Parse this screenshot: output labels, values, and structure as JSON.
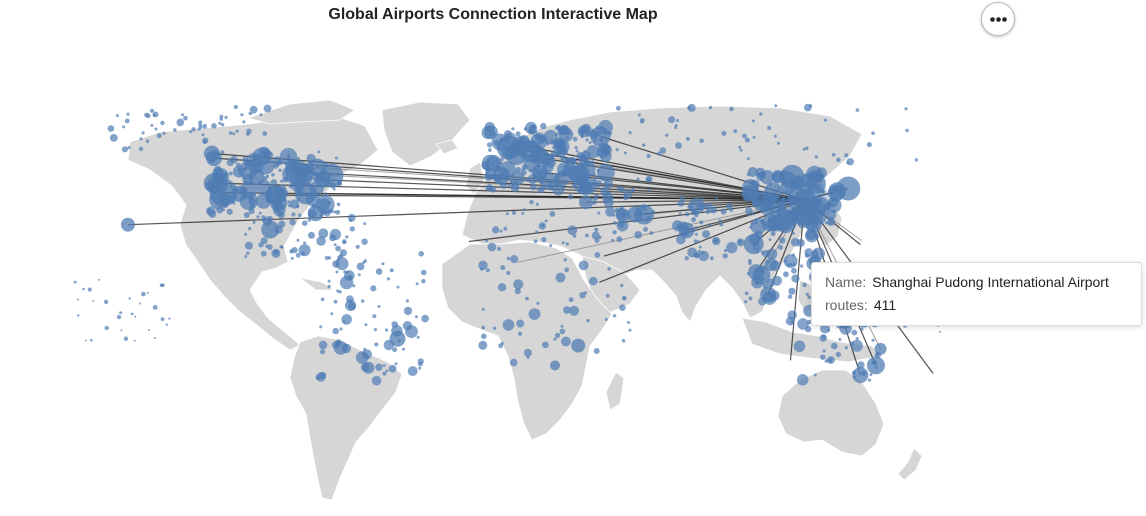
{
  "title": "Global Airports Connection Interactive Map",
  "menu": {
    "icon": "more-horizontal-icon"
  },
  "colors": {
    "land": "#d6d6d6",
    "border": "#ffffff",
    "airport": "#4f7cb3",
    "route_highlight": "#1c1c1c",
    "route_faded": "#8c8c8c"
  },
  "tooltip": {
    "name_key": "Name:",
    "name_value": "Shanghai Pudong International Airport",
    "routes_key": "routes:",
    "routes_value": "411"
  },
  "map_data": {
    "type": "geo-scatter-with-routes",
    "hub": {
      "name": "Shanghai Pudong International Airport",
      "lon": 121.8,
      "lat": 31.1,
      "routes": 411
    },
    "highlighted_destinations": [
      {
        "lon": -0.45,
        "lat": 51.5
      },
      {
        "lon": 2.55,
        "lat": 49.0
      },
      {
        "lon": 8.6,
        "lat": 50.0
      },
      {
        "lon": 11.8,
        "lat": 48.4
      },
      {
        "lon": 4.8,
        "lat": 52.3
      },
      {
        "lon": 12.3,
        "lat": 41.8
      },
      {
        "lon": 37.4,
        "lat": 55.9
      },
      {
        "lon": 28.8,
        "lat": 41.0
      },
      {
        "lon": -73.8,
        "lat": 40.6
      },
      {
        "lon": -87.9,
        "lat": 42.0
      },
      {
        "lon": -118.4,
        "lat": 33.9
      },
      {
        "lon": -122.4,
        "lat": 37.6
      },
      {
        "lon": -122.3,
        "lat": 47.4
      },
      {
        "lon": -79.6,
        "lat": 43.7
      },
      {
        "lon": -123.2,
        "lat": 49.2
      },
      {
        "lon": -77.4,
        "lat": 38.9
      },
      {
        "lon": -84.4,
        "lat": 33.6
      },
      {
        "lon": -97.0,
        "lat": 32.9
      },
      {
        "lon": 55.4,
        "lat": 25.3
      },
      {
        "lon": 51.6,
        "lat": 25.3
      },
      {
        "lon": 72.9,
        "lat": 19.1
      },
      {
        "lon": 77.1,
        "lat": 28.6
      },
      {
        "lon": 100.7,
        "lat": 13.7
      },
      {
        "lon": 103.9,
        "lat": 1.4
      },
      {
        "lon": 101.7,
        "lat": 2.7
      },
      {
        "lon": 106.7,
        "lat": -6.1
      },
      {
        "lon": 151.2,
        "lat": -33.9
      },
      {
        "lon": 144.8,
        "lat": -37.7
      },
      {
        "lon": 153.1,
        "lat": -27.4
      },
      {
        "lon": 174.8,
        "lat": -37.0
      },
      {
        "lon": 115.9,
        "lat": -31.9
      },
      {
        "lon": 139.8,
        "lat": 35.5
      },
      {
        "lon": 135.2,
        "lat": 34.4
      },
      {
        "lon": 126.4,
        "lat": 37.5
      },
      {
        "lon": 113.9,
        "lat": 22.3
      },
      {
        "lon": 121.2,
        "lat": 25.1
      },
      {
        "lon": -157.9,
        "lat": 21.3
      },
      {
        "lon": -17.0,
        "lat": 14.7
      },
      {
        "lon": 3.3,
        "lat": 6.6
      },
      {
        "lon": 38.8,
        "lat": 9.0
      },
      {
        "lon": 31.4,
        "lat": 30.1
      },
      {
        "lon": 36.9,
        "lat": -1.3
      },
      {
        "lon": 144.8,
        "lat": 13.5
      },
      {
        "lon": 145.3,
        "lat": 15.1
      }
    ],
    "airport_clusters": [
      {
        "lon": -10,
        "lat": 35,
        "lon2": 40,
        "lat2": 60,
        "n": 240,
        "rmin": 1.5,
        "rmax": 9
      },
      {
        "lon": -125,
        "lat": 25,
        "lon2": -70,
        "lat2": 50,
        "n": 170,
        "rmin": 1.5,
        "rmax": 10
      },
      {
        "lon": 98,
        "lat": 20,
        "lon2": 135,
        "lat2": 42,
        "n": 150,
        "rmin": 1.5,
        "rmax": 9
      },
      {
        "lon": 68,
        "lat": 8,
        "lon2": 92,
        "lat2": 32,
        "n": 50,
        "rmin": 1.5,
        "rmax": 6
      },
      {
        "lon": 95,
        "lat": -10,
        "lon2": 128,
        "lat2": 18,
        "n": 70,
        "rmin": 1.5,
        "rmax": 7
      },
      {
        "lon": -110,
        "lat": 8,
        "lon2": -60,
        "lat2": 25,
        "n": 55,
        "rmin": 1.5,
        "rmax": 6
      },
      {
        "lon": -80,
        "lat": -40,
        "lon2": -35,
        "lat2": 10,
        "n": 85,
        "rmin": 1.5,
        "rmax": 7
      },
      {
        "lon": -15,
        "lat": -35,
        "lon2": 50,
        "lat2": 35,
        "n": 90,
        "rmin": 1.5,
        "rmax": 6
      },
      {
        "lon": 115,
        "lat": -40,
        "lon2": 155,
        "lat2": -12,
        "n": 55,
        "rmin": 1.5,
        "rmax": 7
      },
      {
        "lon": 35,
        "lat": 15,
        "lon2": 60,
        "lat2": 40,
        "n": 40,
        "rmin": 1.5,
        "rmax": 6
      },
      {
        "lon": 40,
        "lat": 45,
        "lon2": 170,
        "lat2": 68,
        "n": 55,
        "rmin": 1.5,
        "rmax": 4
      },
      {
        "lon": -165,
        "lat": 50,
        "lon2": -100,
        "lat2": 68,
        "n": 55,
        "rmin": 1.5,
        "rmax": 4
      },
      {
        "lon": -180,
        "lat": -25,
        "lon2": -140,
        "lat2": 0,
        "n": 30,
        "rmin": 1,
        "rmax": 2.5
      },
      {
        "lon": 160,
        "lat": -22,
        "lon2": 180,
        "lat2": 5,
        "n": 22,
        "rmin": 1,
        "rmax": 2.5
      }
    ],
    "major_airports": [
      {
        "lon": -118.4,
        "lat": 33.9,
        "r": 14
      },
      {
        "lon": -122.4,
        "lat": 37.6,
        "r": 10
      },
      {
        "lon": -87.9,
        "lat": 42.0,
        "r": 12
      },
      {
        "lon": -73.8,
        "lat": 40.6,
        "r": 12
      },
      {
        "lon": -84.4,
        "lat": 33.6,
        "r": 11
      },
      {
        "lon": -97.0,
        "lat": 32.9,
        "r": 10
      },
      {
        "lon": -104.7,
        "lat": 39.9,
        "r": 8
      },
      {
        "lon": -80.3,
        "lat": 25.8,
        "r": 8
      },
      {
        "lon": -99.1,
        "lat": 19.4,
        "r": 9
      },
      {
        "lon": -0.45,
        "lat": 51.5,
        "r": 12
      },
      {
        "lon": 2.55,
        "lat": 49.0,
        "r": 11
      },
      {
        "lon": 8.6,
        "lat": 50.0,
        "r": 11
      },
      {
        "lon": 4.8,
        "lat": 52.3,
        "r": 10
      },
      {
        "lon": 11.8,
        "lat": 48.4,
        "r": 9
      },
      {
        "lon": -3.6,
        "lat": 40.5,
        "r": 9
      },
      {
        "lon": 12.3,
        "lat": 41.8,
        "r": 8
      },
      {
        "lon": 28.8,
        "lat": 41.0,
        "r": 10
      },
      {
        "lon": 37.4,
        "lat": 55.9,
        "r": 10
      },
      {
        "lon": 55.4,
        "lat": 25.3,
        "r": 10
      },
      {
        "lon": 51.6,
        "lat": 25.3,
        "r": 8
      },
      {
        "lon": 46.7,
        "lat": 24.9,
        "r": 7
      },
      {
        "lon": 31.4,
        "lat": 30.1,
        "r": 7
      },
      {
        "lon": 77.1,
        "lat": 28.6,
        "r": 8
      },
      {
        "lon": 72.9,
        "lat": 19.1,
        "r": 8
      },
      {
        "lon": 100.7,
        "lat": 13.7,
        "r": 10
      },
      {
        "lon": 103.9,
        "lat": 1.4,
        "r": 9
      },
      {
        "lon": 101.7,
        "lat": 2.7,
        "r": 8
      },
      {
        "lon": 106.7,
        "lat": -6.1,
        "r": 8
      },
      {
        "lon": 113.9,
        "lat": 22.3,
        "r": 11
      },
      {
        "lon": 116.6,
        "lat": 40.1,
        "r": 12
      },
      {
        "lon": 113.3,
        "lat": 23.4,
        "r": 11
      },
      {
        "lon": 104.0,
        "lat": 30.6,
        "r": 10
      },
      {
        "lon": 108.8,
        "lat": 34.4,
        "r": 9
      },
      {
        "lon": 139.8,
        "lat": 35.5,
        "r": 12
      },
      {
        "lon": 135.2,
        "lat": 34.4,
        "r": 9
      },
      {
        "lon": 126.4,
        "lat": 37.5,
        "r": 10
      },
      {
        "lon": 121.2,
        "lat": 25.1,
        "r": 8
      },
      {
        "lon": 151.2,
        "lat": -33.9,
        "r": 9
      },
      {
        "lon": 144.8,
        "lat": -37.7,
        "r": 8
      },
      {
        "lon": 153.1,
        "lat": -27.4,
        "r": 6
      },
      {
        "lon": -46.5,
        "lat": -23.4,
        "r": 8
      },
      {
        "lon": -58.5,
        "lat": -34.8,
        "r": 6
      },
      {
        "lon": 28.2,
        "lat": -26.1,
        "r": 7
      },
      {
        "lon": 18.6,
        "lat": -33.9,
        "r": 5
      },
      {
        "lon": -157.9,
        "lat": 21.3,
        "r": 7
      },
      {
        "lon": -79.6,
        "lat": 43.7,
        "r": 9
      },
      {
        "lon": -123.2,
        "lat": 49.2,
        "r": 8
      },
      {
        "lon": -122.3,
        "lat": 47.4,
        "r": 8
      },
      {
        "lon": -112.0,
        "lat": 33.4,
        "r": 8
      },
      {
        "lon": -95.3,
        "lat": 29.9,
        "r": 8
      },
      {
        "lon": -77.4,
        "lat": 38.9,
        "r": 8
      }
    ]
  }
}
